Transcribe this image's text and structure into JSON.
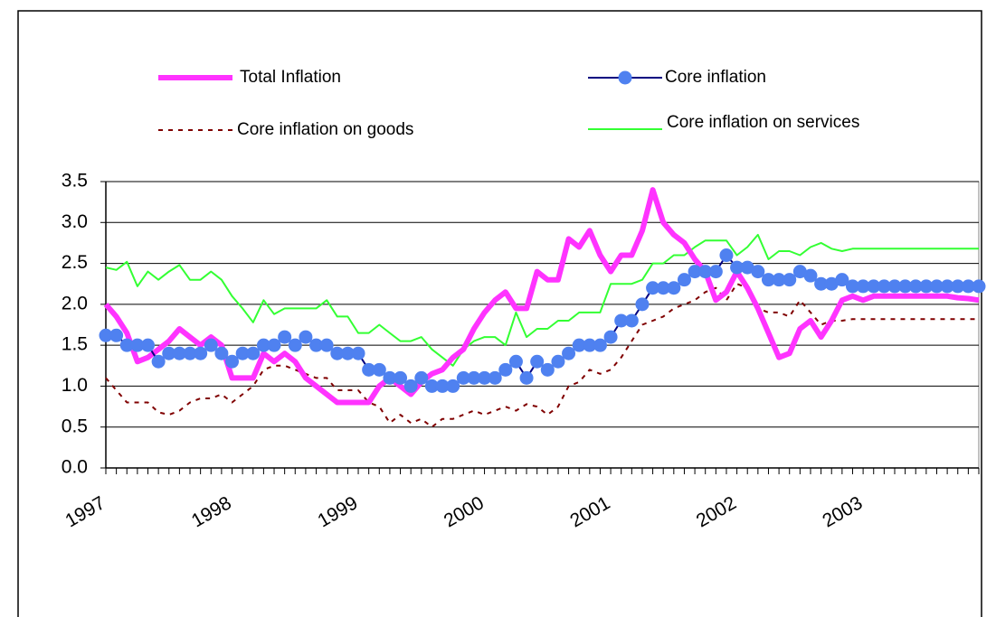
{
  "chart_data": {
    "type": "line",
    "categories": [
      "1997",
      null,
      null,
      null,
      null,
      null,
      null,
      null,
      null,
      null,
      null,
      null,
      "1998",
      null,
      null,
      null,
      null,
      null,
      null,
      null,
      null,
      null,
      null,
      null,
      "1999",
      null,
      null,
      null,
      null,
      null,
      null,
      null,
      null,
      null,
      null,
      null,
      "2000",
      null,
      null,
      null,
      null,
      null,
      null,
      null,
      null,
      null,
      null,
      null,
      "2001",
      null,
      null,
      null,
      null,
      null,
      null,
      null,
      null,
      null,
      null,
      null,
      "2002",
      null,
      null,
      null,
      null,
      null,
      null,
      null,
      null,
      null,
      null,
      null,
      "2003",
      null,
      null,
      null,
      null,
      null,
      null,
      null,
      null,
      null,
      null,
      null
    ],
    "ylim": [
      0,
      3.5
    ],
    "yticks": [
      {
        "value": 0,
        "label": "0.0"
      },
      0.5,
      {
        "value": 1,
        "label": "1.0"
      },
      1.5,
      {
        "value": 2,
        "label": "2.0"
      },
      2.5,
      {
        "value": 3,
        "label": "3.0"
      },
      3.5
    ],
    "grid": true,
    "series": [
      {
        "name": "Total Inflation",
        "color": "#ff33ff",
        "line_style": "thick",
        "values": [
          2.0,
          1.85,
          1.65,
          1.3,
          1.35,
          1.45,
          1.55,
          1.7,
          1.6,
          1.5,
          1.6,
          1.5,
          1.1,
          1.1,
          1.1,
          1.4,
          1.3,
          1.4,
          1.3,
          1.1,
          1.0,
          0.9,
          0.8,
          0.8,
          0.8,
          0.8,
          1.0,
          1.1,
          1.0,
          0.9,
          1.05,
          1.15,
          1.2,
          1.35,
          1.45,
          1.7,
          1.9,
          2.05,
          2.15,
          1.95,
          1.95,
          2.4,
          2.3,
          2.3,
          2.8,
          2.7,
          2.9,
          2.6,
          2.4,
          2.6,
          2.6,
          2.9,
          3.4,
          3.0,
          2.85,
          2.75,
          2.55,
          2.4,
          2.05,
          2.15,
          2.4,
          2.2,
          1.95,
          1.65,
          1.35,
          1.4,
          1.7,
          1.8,
          1.6,
          1.8,
          2.05,
          2.1,
          2.05,
          2.1,
          2.1,
          2.1,
          2.1,
          2.1,
          2.1,
          2.1,
          2.1,
          2.08,
          2.07,
          2.05
        ]
      },
      {
        "name": "Core inflation",
        "color": "#000080",
        "marker_color": "#4f81f0",
        "line_style": "solid",
        "marker": "circle",
        "values": [
          1.62,
          1.62,
          1.5,
          1.5,
          1.5,
          1.3,
          1.4,
          1.4,
          1.4,
          1.4,
          1.5,
          1.4,
          1.3,
          1.4,
          1.4,
          1.5,
          1.5,
          1.6,
          1.5,
          1.6,
          1.5,
          1.5,
          1.4,
          1.4,
          1.4,
          1.2,
          1.2,
          1.1,
          1.1,
          1.0,
          1.1,
          1.0,
          1.0,
          1.0,
          1.1,
          1.1,
          1.1,
          1.1,
          1.2,
          1.3,
          1.1,
          1.3,
          1.2,
          1.3,
          1.4,
          1.5,
          1.5,
          1.5,
          1.6,
          1.8,
          1.8,
          2.0,
          2.2,
          2.2,
          2.2,
          2.3,
          2.4,
          2.4,
          2.4,
          2.6,
          2.45,
          2.45,
          2.4,
          2.3,
          2.3,
          2.3,
          2.4,
          2.35,
          2.25,
          2.25,
          2.3,
          2.22,
          2.22,
          2.22,
          2.22,
          2.22,
          2.22,
          2.22,
          2.22,
          2.22,
          2.22,
          2.22,
          2.22,
          2.22
        ]
      },
      {
        "name": "Core inflation on goods",
        "color": "#800000",
        "line_style": "dotted",
        "values": [
          1.1,
          0.95,
          0.8,
          0.8,
          0.8,
          0.68,
          0.65,
          0.7,
          0.8,
          0.85,
          0.85,
          0.9,
          0.8,
          0.9,
          1.0,
          1.2,
          1.25,
          1.25,
          1.2,
          1.15,
          1.1,
          1.1,
          0.95,
          0.95,
          0.95,
          0.8,
          0.75,
          0.55,
          0.65,
          0.55,
          0.6,
          0.5,
          0.6,
          0.6,
          0.65,
          0.7,
          0.65,
          0.7,
          0.75,
          0.7,
          0.78,
          0.75,
          0.65,
          0.75,
          1.0,
          1.05,
          1.2,
          1.15,
          1.2,
          1.35,
          1.55,
          1.75,
          1.8,
          1.85,
          1.95,
          2.0,
          2.05,
          2.15,
          2.2,
          2.05,
          2.25,
          2.2,
          1.95,
          1.9,
          1.9,
          1.85,
          2.05,
          1.9,
          1.75,
          1.8,
          1.8,
          1.82,
          1.82,
          1.82,
          1.82,
          1.82,
          1.82,
          1.82,
          1.82,
          1.82,
          1.82,
          1.82,
          1.82,
          1.82
        ]
      },
      {
        "name": "Core inflation on services",
        "color": "#33ff33",
        "line_style": "solid",
        "values": [
          2.45,
          2.42,
          2.52,
          2.22,
          2.4,
          2.3,
          2.4,
          2.48,
          2.3,
          2.3,
          2.4,
          2.3,
          2.1,
          1.95,
          1.78,
          2.05,
          1.88,
          1.95,
          1.95,
          1.95,
          1.95,
          2.05,
          1.85,
          1.85,
          1.65,
          1.65,
          1.75,
          1.65,
          1.55,
          1.55,
          1.6,
          1.45,
          1.35,
          1.25,
          1.45,
          1.55,
          1.6,
          1.6,
          1.5,
          1.9,
          1.6,
          1.7,
          1.7,
          1.8,
          1.8,
          1.9,
          1.9,
          1.9,
          2.25,
          2.25,
          2.25,
          2.3,
          2.5,
          2.5,
          2.6,
          2.6,
          2.7,
          2.78,
          2.78,
          2.78,
          2.6,
          2.7,
          2.85,
          2.55,
          2.65,
          2.65,
          2.6,
          2.7,
          2.75,
          2.68,
          2.65,
          2.68,
          2.68,
          2.68,
          2.68,
          2.68,
          2.68,
          2.68,
          2.68,
          2.68,
          2.68,
          2.68,
          2.68,
          2.68
        ]
      }
    ]
  }
}
